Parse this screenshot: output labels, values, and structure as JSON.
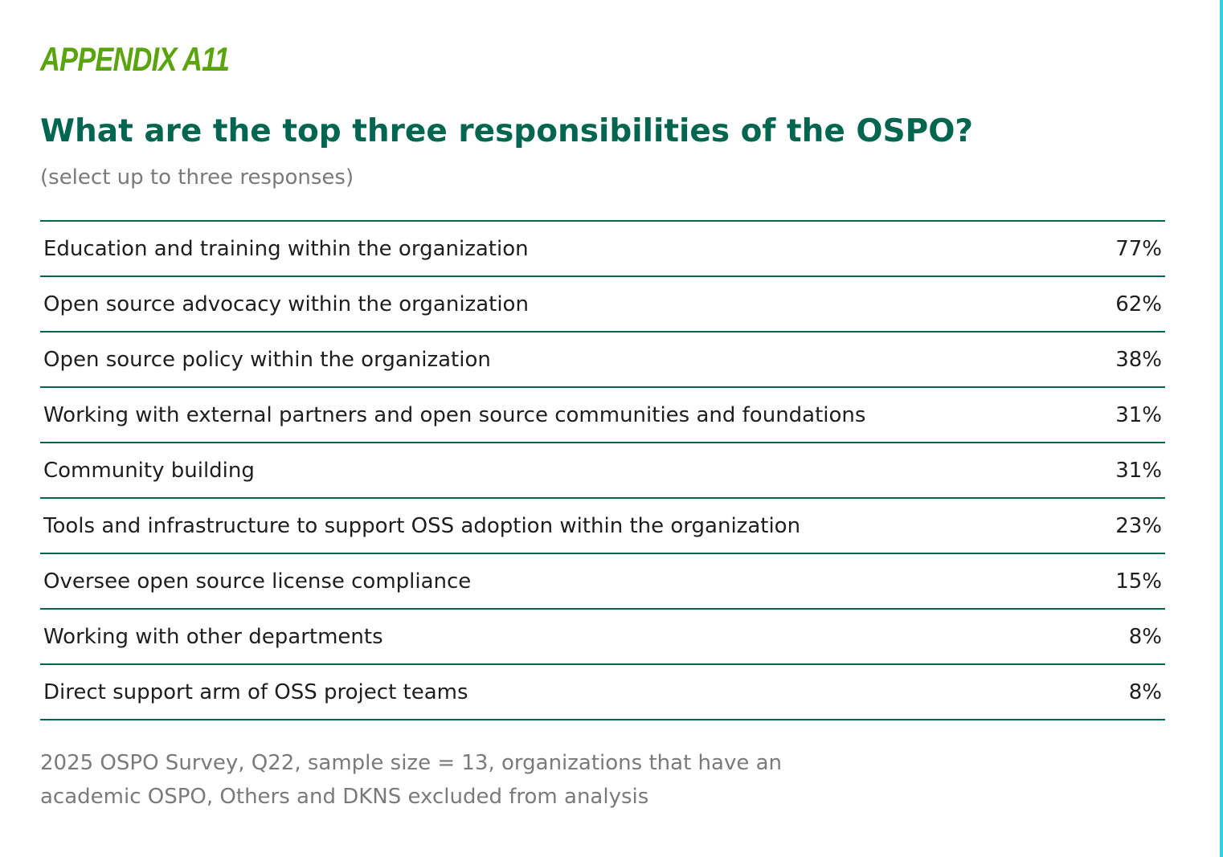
{
  "appendix_label": "APPENDIX A11",
  "title": "What are the top three responsibilities of the OSPO?",
  "subtitle": "(select up to three responses)",
  "accent_color": "#2fd3e0",
  "brand_color": "#00664f",
  "appendix_color": "#5aa50e",
  "rows": [
    {
      "label": "Education and training within the organization",
      "value": "77%"
    },
    {
      "label": "Open source advocacy within the organization",
      "value": "62%"
    },
    {
      "label": "Open source policy within the organization",
      "value": "38%"
    },
    {
      "label": "Working with external partners and open source communities and foundations",
      "value": "31%"
    },
    {
      "label": "Community building",
      "value": "31%"
    },
    {
      "label": "Tools and infrastructure to support OSS adoption within the organization",
      "value": "23%"
    },
    {
      "label": "Oversee open source license compliance",
      "value": "15%"
    },
    {
      "label": "Working with other departments",
      "value": "8%"
    },
    {
      "label": "Direct support arm of OSS project teams",
      "value": "8%"
    }
  ],
  "footnote": {
    "line1": "2025 OSPO Survey, Q22, sample size = 13, organizations that have an",
    "line2": "academic OSPO, Others and DKNS excluded from analysis"
  }
}
